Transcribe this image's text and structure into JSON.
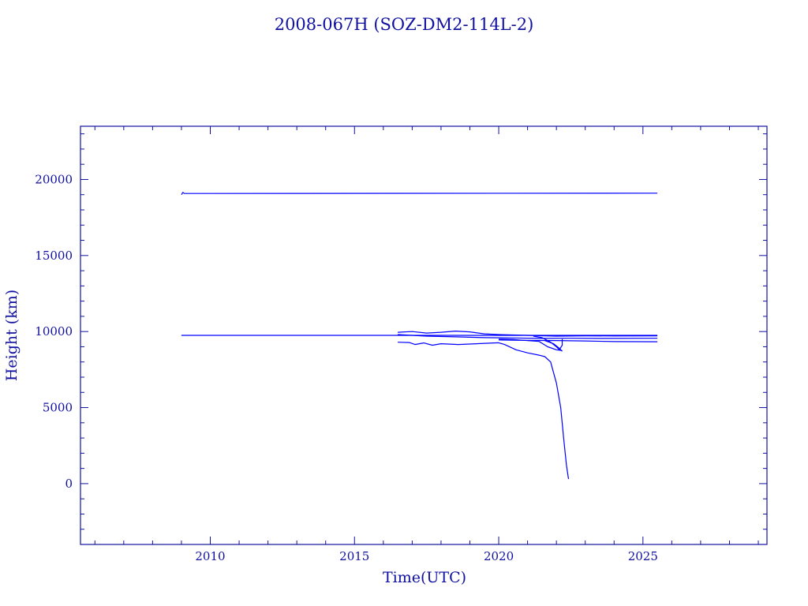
{
  "colors": {
    "ink": "#1010a0",
    "series": "#0000ff",
    "background": "#ffffff"
  },
  "chart_data": {
    "type": "line",
    "title": "2008-067H (SOZ-DM2-114L-2)",
    "xlabel": "Time(UTC)",
    "ylabel": "Height (km)",
    "xlim": [
      2005.5,
      2029.3
    ],
    "ylim": [
      -4000,
      23500
    ],
    "x_ticks": [
      2010,
      2015,
      2020,
      2025
    ],
    "y_ticks": [
      0,
      5000,
      10000,
      15000,
      20000
    ],
    "x_minor_step": 1,
    "y_minor_step": 1000,
    "grid": false,
    "legend": "none",
    "series": [
      {
        "values": [
          [
            2009.0,
            19000
          ],
          [
            2009.05,
            19150
          ],
          [
            2009.1,
            19080
          ],
          [
            2025.5,
            19100
          ]
        ]
      },
      {
        "values": [
          [
            2009.0,
            9750
          ],
          [
            2016.6,
            9750
          ],
          [
            2025.5,
            9750
          ]
        ]
      },
      {
        "values": [
          [
            2016.5,
            9950
          ],
          [
            2017.0,
            10000
          ],
          [
            2017.5,
            9900
          ],
          [
            2018.0,
            9950
          ],
          [
            2018.5,
            10030
          ],
          [
            2019.0,
            9980
          ],
          [
            2019.5,
            9850
          ],
          [
            2020.0,
            9800
          ],
          [
            2021.0,
            9750
          ],
          [
            2022.0,
            9700
          ],
          [
            2023.0,
            9720
          ],
          [
            2024.0,
            9710
          ],
          [
            2025.5,
            9720
          ]
        ]
      },
      {
        "values": [
          [
            2016.5,
            9800
          ],
          [
            2017.5,
            9700
          ],
          [
            2018.5,
            9650
          ],
          [
            2019.5,
            9600
          ],
          [
            2020.5,
            9580
          ],
          [
            2021.5,
            9550
          ],
          [
            2022.5,
            9560
          ],
          [
            2023.5,
            9550
          ],
          [
            2025.5,
            9560
          ]
        ]
      },
      {
        "values": [
          [
            2016.5,
            9300
          ],
          [
            2016.9,
            9280
          ],
          [
            2017.1,
            9150
          ],
          [
            2017.4,
            9250
          ],
          [
            2017.7,
            9100
          ],
          [
            2018.0,
            9200
          ],
          [
            2018.6,
            9150
          ],
          [
            2019.0,
            9180
          ],
          [
            2019.6,
            9230
          ],
          [
            2020.0,
            9260
          ],
          [
            2020.2,
            9150
          ],
          [
            2020.6,
            8800
          ],
          [
            2021.0,
            8600
          ],
          [
            2021.4,
            8450
          ],
          [
            2021.6,
            8350
          ],
          [
            2021.8,
            8000
          ],
          [
            2022.0,
            6600
          ],
          [
            2022.15,
            5000
          ],
          [
            2022.25,
            3000
          ],
          [
            2022.35,
            1200
          ],
          [
            2022.42,
            300
          ]
        ]
      },
      {
        "values": [
          [
            2020.0,
            9500
          ],
          [
            2020.5,
            9480
          ],
          [
            2021.0,
            9400
          ],
          [
            2021.4,
            9350
          ],
          [
            2021.7,
            9000
          ],
          [
            2022.0,
            8800
          ],
          [
            2022.2,
            8750
          ]
        ]
      },
      {
        "values": [
          [
            2021.2,
            9700
          ],
          [
            2021.5,
            9600
          ],
          [
            2021.8,
            9300
          ],
          [
            2022.0,
            9000
          ],
          [
            2022.1,
            8800
          ],
          [
            2022.2,
            9100
          ],
          [
            2022.2,
            9500
          ]
        ]
      },
      {
        "values": [
          [
            2021.6,
            9400
          ],
          [
            2021.9,
            9200
          ],
          [
            2022.1,
            8900
          ],
          [
            2022.2,
            8700
          ]
        ]
      },
      {
        "values": [
          [
            2020.0,
            9450
          ],
          [
            2021.0,
            9420
          ],
          [
            2022.0,
            9410
          ],
          [
            2023.0,
            9380
          ],
          [
            2024.0,
            9340
          ],
          [
            2025.5,
            9330
          ]
        ]
      }
    ]
  }
}
